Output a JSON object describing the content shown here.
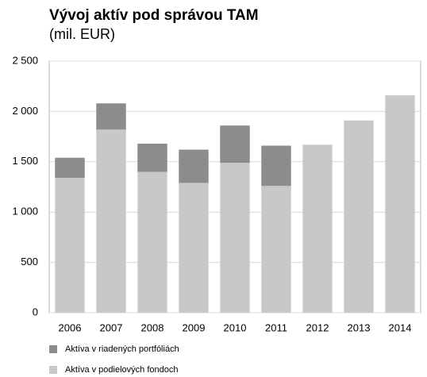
{
  "chart_data": {
    "type": "stacked-bar",
    "title": "Vývoj aktív pod správou TAM",
    "subtitle": "(mil. EUR)",
    "categories": [
      "2006",
      "2007",
      "2008",
      "2009",
      "2010",
      "2011",
      "2012",
      "2013",
      "2014"
    ],
    "series": [
      {
        "name": "Aktíva v podielových fondoch",
        "color": "#c8c8c8",
        "values": [
          1340,
          1820,
          1400,
          1290,
          1490,
          1260,
          1670,
          1910,
          2160
        ]
      },
      {
        "name": "Aktíva v riadených portfóliách",
        "color": "#8c8c8c",
        "values": [
          200,
          260,
          280,
          330,
          370,
          400,
          0,
          0,
          0
        ]
      }
    ],
    "ylim": [
      0,
      2500
    ],
    "yticks": [
      0,
      500,
      {
        "value": 1000,
        "label": "1 000"
      },
      {
        "value": 1500,
        "label": "1 500"
      },
      {
        "value": 2000,
        "label": "2 000"
      },
      {
        "value": 2500,
        "label": "2 500"
      }
    ],
    "grid": true,
    "legend": "bottom"
  }
}
